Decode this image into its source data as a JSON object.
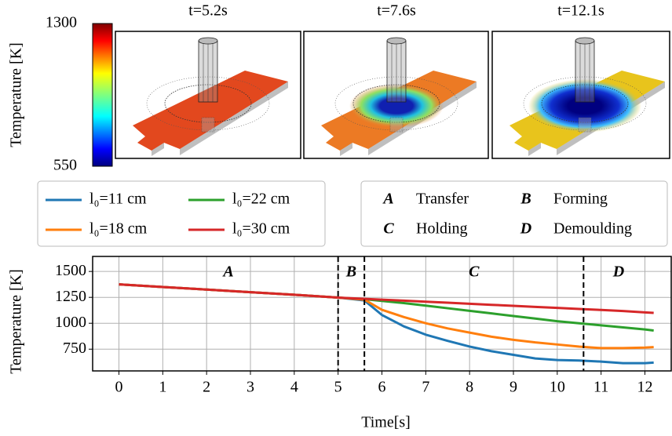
{
  "colorbar": {
    "label": "Temperature [K]",
    "range": [
      550,
      1300
    ],
    "ticks": [
      550,
      1300
    ]
  },
  "snapshots": [
    {
      "title": "t=5.2s"
    },
    {
      "title": "t=7.6s"
    },
    {
      "title": "t=12.1s"
    }
  ],
  "chart_data": {
    "type": "line",
    "xlabel": "Time[s]",
    "ylabel": "Temperature [K]",
    "x": [
      0,
      1,
      2,
      3,
      4,
      5,
      5.6,
      6,
      6.5,
      7,
      7.5,
      8,
      8.5,
      9,
      9.5,
      10,
      10.5,
      11,
      11.5,
      12,
      12.2
    ],
    "series": [
      {
        "name": "l₀=11 cm",
        "color": "#1f77b4",
        "values": [
          1375,
          1350,
          1325,
          1300,
          1275,
          1248,
          1220,
          1080,
          970,
          890,
          830,
          775,
          730,
          695,
          660,
          645,
          640,
          630,
          615,
          615,
          620
        ]
      },
      {
        "name": "l₀=22 cm",
        "color": "#2ca02c",
        "values": [
          1375,
          1350,
          1325,
          1300,
          1275,
          1248,
          1232,
          1215,
          1195,
          1170,
          1145,
          1120,
          1095,
          1070,
          1045,
          1020,
          1000,
          980,
          960,
          940,
          930
        ]
      },
      {
        "name": "l₀=18 cm",
        "color": "#ff7f0e",
        "values": [
          1375,
          1350,
          1325,
          1300,
          1275,
          1248,
          1228,
          1130,
          1060,
          1000,
          950,
          910,
          870,
          840,
          815,
          795,
          775,
          760,
          760,
          765,
          770
        ]
      },
      {
        "name": "l₀=30 cm",
        "color": "#d62728",
        "values": [
          1375,
          1350,
          1325,
          1300,
          1275,
          1248,
          1235,
          1228,
          1218,
          1208,
          1198,
          1188,
          1178,
          1168,
          1158,
          1148,
          1138,
          1128,
          1118,
          1105,
          1100
        ]
      }
    ],
    "phase_boundaries": [
      5,
      5.6,
      10.6
    ],
    "phases": [
      {
        "letter": "A",
        "label": "Transfer"
      },
      {
        "letter": "B",
        "label": "Forming"
      },
      {
        "letter": "C",
        "label": "Holding"
      },
      {
        "letter": "D",
        "label": "Demoulding"
      }
    ],
    "xlim": [
      -0.6,
      12.6
    ],
    "ylim": [
      540,
      1645
    ],
    "xticks": [
      0,
      1,
      2,
      3,
      4,
      5,
      6,
      7,
      8,
      9,
      10,
      11,
      12
    ],
    "yticks": [
      750,
      1000,
      1250,
      1500
    ],
    "grid": true
  }
}
